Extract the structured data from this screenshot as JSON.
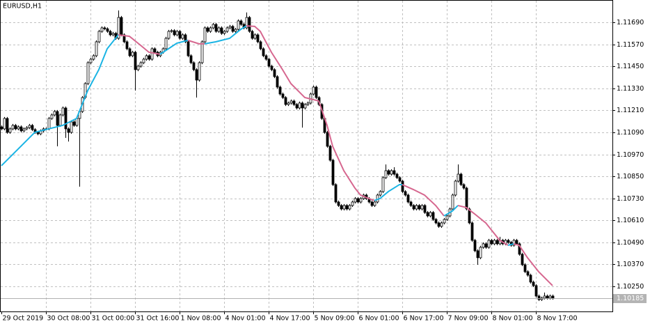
{
  "chart_data": {
    "type": "candlestick",
    "title": "EURUSD,H1",
    "categories": [
      "29 Oct 2019",
      null,
      null,
      null,
      null,
      null,
      null,
      null,
      null,
      null,
      null,
      null,
      null,
      null,
      null,
      null,
      "30 Oct 08:00",
      null,
      null,
      null,
      null,
      null,
      null,
      null,
      null,
      null,
      null,
      null,
      null,
      null,
      null,
      null,
      "31 Oct 00:00",
      null,
      null,
      null,
      null,
      null,
      null,
      null,
      null,
      null,
      null,
      null,
      null,
      null,
      null,
      null,
      "31 Oct 16:00",
      null,
      null,
      null,
      null,
      null,
      null,
      null,
      null,
      null,
      null,
      null,
      null,
      null,
      null,
      null,
      "1 Nov 08:00",
      null,
      null,
      null,
      null,
      null,
      null,
      null,
      null,
      null,
      null,
      null,
      null,
      null,
      null,
      null,
      "4 Nov 01:00",
      null,
      null,
      null,
      null,
      null,
      null,
      null,
      null,
      null,
      null,
      null,
      null,
      null,
      null,
      null,
      "4 Nov 17:00",
      null,
      null,
      null,
      null,
      null,
      null,
      null,
      null,
      null,
      null,
      null,
      null,
      null,
      null,
      null,
      "5 Nov 09:00",
      null,
      null,
      null,
      null,
      null,
      null,
      null,
      null,
      null,
      null,
      null,
      null,
      null,
      null,
      null,
      "6 Nov 01:00",
      null,
      null,
      null,
      null,
      null,
      null,
      null,
      null,
      null,
      null,
      null,
      null,
      null,
      null,
      null,
      "6 Nov 17:00",
      null,
      null,
      null,
      null,
      null,
      null,
      null,
      null,
      null,
      null,
      null,
      null,
      null,
      null,
      null,
      "7 Nov 09:00",
      null,
      null,
      null,
      null,
      null,
      null,
      null,
      null,
      null,
      null,
      null,
      null,
      null,
      null,
      null,
      "8 Nov 01:00",
      null,
      null,
      null,
      null,
      null,
      null,
      null,
      null,
      null,
      null,
      null,
      null,
      null,
      null,
      null,
      "8 Nov 17:00",
      null,
      null,
      null,
      null,
      null,
      null
    ],
    "open": [
      1.1112,
      1.11109,
      1.11166,
      1.1109,
      1.11109,
      1.11128,
      1.11109,
      1.1112,
      1.11098,
      1.11109,
      1.11116,
      1.11128,
      1.11105,
      1.1109,
      1.11082,
      1.11098,
      1.11109,
      1.11109,
      1.11166,
      1.11185,
      1.11204,
      1.11128,
      1.11185,
      1.11223,
      1.11109,
      1.1109,
      1.11147,
      1.11128,
      1.11166,
      1.11204,
      1.1128,
      1.11356,
      1.1147,
      1.11489,
      1.11508,
      1.11584,
      1.11641,
      1.1166,
      1.11655,
      1.11641,
      1.11622,
      1.1163,
      1.11603,
      1.11717,
      1.11622,
      1.11584,
      1.11546,
      1.11508,
      1.11527,
      1.11432,
      1.11451,
      1.1147,
      1.11489,
      1.11508,
      1.11489,
      1.11546,
      1.11527,
      1.11508,
      1.11527,
      1.11546,
      1.11603,
      1.11641,
      1.11645,
      1.11622,
      1.11641,
      1.11603,
      1.11622,
      1.11584,
      1.11508,
      1.1147,
      1.11432,
      1.11375,
      1.1147,
      1.11584,
      1.1166,
      1.11641,
      1.1166,
      1.11679,
      1.11641,
      1.1166,
      1.1163,
      1.11641,
      1.1166,
      1.11668,
      1.11641,
      1.11652,
      1.11698,
      1.11679,
      1.1166,
      1.11717,
      1.11641,
      1.11603,
      1.11622,
      1.11584,
      1.11546,
      1.11508,
      1.11489,
      1.11451,
      1.11432,
      1.11394,
      1.11337,
      1.11299,
      1.1128,
      1.11242,
      1.1125,
      1.11261,
      1.11242,
      1.11223,
      1.1125,
      1.11223,
      1.11242,
      1.1125,
      1.11299,
      1.11337,
      1.1128,
      1.11242,
      1.11166,
      1.1109,
      1.11014,
      1.10938,
      1.10805,
      1.1071,
      1.10691,
      1.10672,
      1.10691,
      1.10672,
      1.10691,
      1.1071,
      1.10729,
      1.1071,
      1.10729,
      1.10748,
      1.10729,
      1.1071,
      1.10691,
      1.1071,
      1.10748,
      1.10767,
      1.10843,
      1.10881,
      1.10862,
      1.10881,
      1.10862,
      1.10843,
      1.10824,
      1.10767,
      1.10748,
      1.1071,
      1.10691,
      1.10672,
      1.10691,
      1.10672,
      1.10691,
      1.10653,
      1.10634,
      1.10653,
      1.10615,
      1.10596,
      1.10577,
      1.10596,
      1.10615,
      1.10634,
      1.10672,
      1.10748,
      1.10824,
      1.10862,
      1.10805,
      1.10786,
      1.10672,
      1.10596,
      1.10501,
      1.10444,
      1.10406,
      1.10463,
      1.10482,
      1.10463,
      1.10501,
      1.10482,
      1.10501,
      1.10482,
      1.10501,
      1.10482,
      1.10501,
      1.1049,
      1.10474,
      1.10501,
      1.10482,
      1.10425,
      1.10368,
      1.1033,
      1.10311,
      1.10273,
      1.10254,
      1.10197,
      1.10178,
      1.10186,
      1.10197,
      1.10186,
      1.10197
    ],
    "high": [
      1.11128,
      1.11174,
      1.11174,
      1.11117,
      1.11136,
      1.11136,
      1.11128,
      1.11128,
      1.11117,
      1.11124,
      1.11136,
      1.11136,
      1.11113,
      1.11098,
      1.11106,
      1.11117,
      1.11117,
      1.11174,
      1.11193,
      1.11212,
      1.11212,
      1.11193,
      1.11231,
      1.11231,
      1.11117,
      1.11155,
      1.11155,
      1.11174,
      1.11212,
      1.11288,
      1.11364,
      1.11478,
      1.11497,
      1.11516,
      1.11592,
      1.11649,
      1.11668,
      1.11668,
      1.11663,
      1.11649,
      1.11638,
      1.11638,
      1.11755,
      1.11725,
      1.1163,
      1.11592,
      1.11554,
      1.11535,
      1.11535,
      1.11459,
      1.11478,
      1.11497,
      1.11516,
      1.11516,
      1.11554,
      1.11554,
      1.11535,
      1.11535,
      1.11554,
      1.11611,
      1.11649,
      1.11653,
      1.11653,
      1.11649,
      1.11649,
      1.1163,
      1.1163,
      1.11592,
      1.11516,
      1.11478,
      1.1144,
      1.11478,
      1.11592,
      1.11668,
      1.11668,
      1.11668,
      1.11687,
      1.11687,
      1.11668,
      1.11668,
      1.11649,
      1.11668,
      1.11676,
      1.11676,
      1.1166,
      1.11706,
      1.11706,
      1.11687,
      1.11744,
      1.11725,
      1.11649,
      1.1163,
      1.1163,
      1.11592,
      1.11554,
      1.11516,
      1.11497,
      1.11459,
      1.1144,
      1.11402,
      1.11345,
      1.11307,
      1.11288,
      1.11258,
      1.11269,
      1.11269,
      1.1125,
      1.11258,
      1.11258,
      1.1125,
      1.11258,
      1.11307,
      1.11345,
      1.11345,
      1.11288,
      1.1125,
      1.11174,
      1.11098,
      1.11022,
      1.10946,
      1.10813,
      1.10718,
      1.10699,
      1.10699,
      1.10699,
      1.10699,
      1.10718,
      1.10737,
      1.10737,
      1.10737,
      1.10756,
      1.10756,
      1.10737,
      1.10718,
      1.10718,
      1.10756,
      1.10775,
      1.10851,
      1.10915,
      1.10889,
      1.10889,
      1.109,
      1.1087,
      1.10851,
      1.10832,
      1.10775,
      1.10756,
      1.10718,
      1.10699,
      1.10699,
      1.10699,
      1.10699,
      1.10699,
      1.10661,
      1.10661,
      1.10661,
      1.10623,
      1.10604,
      1.10604,
      1.10623,
      1.10642,
      1.1068,
      1.10756,
      1.10832,
      1.10915,
      1.1087,
      1.10813,
      1.10794,
      1.1068,
      1.10604,
      1.10509,
      1.10452,
      1.10471,
      1.1049,
      1.1049,
      1.10509,
      1.10509,
      1.10509,
      1.10509,
      1.1052,
      1.10509,
      1.10509,
      1.10509,
      1.10498,
      1.10509,
      1.10509,
      1.1049,
      1.10433,
      1.10376,
      1.10338,
      1.10319,
      1.10281,
      1.10262,
      1.10205,
      1.10194,
      1.10216,
      1.10205,
      1.10205,
      1.10205
    ],
    "low": [
      1.11101,
      1.11101,
      1.11082,
      1.11082,
      1.11101,
      1.11101,
      1.11101,
      1.1109,
      1.1109,
      1.11101,
      1.11108,
      1.11097,
      1.11082,
      1.11074,
      1.11074,
      1.1109,
      1.11101,
      1.11101,
      1.11158,
      1.11177,
      1.11014,
      1.1112,
      1.11177,
      1.1106,
      1.1104,
      1.11082,
      1.1112,
      1.1112,
      1.10794,
      1.11196,
      1.11272,
      1.11348,
      1.11462,
      1.11481,
      1.115,
      1.11576,
      1.11633,
      1.11647,
      1.11633,
      1.11614,
      1.11614,
      1.11595,
      1.11595,
      1.11614,
      1.11576,
      1.11538,
      1.115,
      1.115,
      1.11318,
      1.11424,
      1.11443,
      1.11462,
      1.11481,
      1.11481,
      1.11481,
      1.11519,
      1.115,
      1.115,
      1.11519,
      1.11538,
      1.11595,
      1.11633,
      1.11614,
      1.11614,
      1.11595,
      1.11595,
      1.11576,
      1.115,
      1.11462,
      1.11424,
      1.1128,
      1.11367,
      1.11462,
      1.11576,
      1.11633,
      1.11633,
      1.11652,
      1.11633,
      1.11633,
      1.11622,
      1.11622,
      1.11633,
      1.11652,
      1.11633,
      1.11633,
      1.11644,
      1.11671,
      1.11652,
      1.11652,
      1.11633,
      1.11595,
      1.11595,
      1.11576,
      1.11538,
      1.115,
      1.11481,
      1.11443,
      1.11424,
      1.11386,
      1.11329,
      1.11291,
      1.11272,
      1.11234,
      1.11234,
      1.11242,
      1.11234,
      1.11215,
      1.11215,
      1.11116,
      1.11215,
      1.11234,
      1.11242,
      1.11291,
      1.11272,
      1.11234,
      1.11158,
      1.11082,
      1.11006,
      1.1093,
      1.10797,
      1.10702,
      1.10683,
      1.10664,
      1.10664,
      1.10664,
      1.10664,
      1.10683,
      1.10702,
      1.10702,
      1.10702,
      1.10721,
      1.10721,
      1.10702,
      1.10683,
      1.10683,
      1.10702,
      1.1074,
      1.10759,
      1.10835,
      1.10854,
      1.10854,
      1.10854,
      1.10835,
      1.10816,
      1.10759,
      1.1074,
      1.10702,
      1.10683,
      1.10664,
      1.10664,
      1.10664,
      1.10664,
      1.10645,
      1.10626,
      1.10626,
      1.10607,
      1.10588,
      1.10569,
      1.10569,
      1.10588,
      1.10607,
      1.10626,
      1.10664,
      1.1074,
      1.10816,
      1.10797,
      1.10778,
      1.10664,
      1.10588,
      1.10493,
      1.10436,
      1.10368,
      1.10398,
      1.10455,
      1.10455,
      1.10455,
      1.10474,
      1.10474,
      1.10474,
      1.10474,
      1.10474,
      1.10474,
      1.10482,
      1.10466,
      1.10466,
      1.10474,
      1.10417,
      1.1036,
      1.10322,
      1.10303,
      1.10265,
      1.10246,
      1.10189,
      1.1017,
      1.1017,
      1.10178,
      1.10178,
      1.10178,
      1.10177
    ],
    "close": [
      1.11109,
      1.11166,
      1.1109,
      1.11109,
      1.11128,
      1.11109,
      1.1112,
      1.11098,
      1.11109,
      1.11116,
      1.11128,
      1.11105,
      1.1109,
      1.11082,
      1.11098,
      1.11109,
      1.11109,
      1.11166,
      1.11185,
      1.11204,
      1.11128,
      1.11185,
      1.11223,
      1.11109,
      1.1109,
      1.11147,
      1.11128,
      1.11166,
      1.11204,
      1.1128,
      1.11356,
      1.1147,
      1.11489,
      1.11508,
      1.11584,
      1.11641,
      1.1166,
      1.11655,
      1.11641,
      1.11622,
      1.1163,
      1.11603,
      1.11717,
      1.11622,
      1.11584,
      1.11546,
      1.11508,
      1.11527,
      1.11432,
      1.11451,
      1.1147,
      1.11489,
      1.11508,
      1.11489,
      1.11546,
      1.11527,
      1.11508,
      1.11527,
      1.11546,
      1.11603,
      1.11641,
      1.11645,
      1.11622,
      1.11641,
      1.11603,
      1.11622,
      1.11584,
      1.11508,
      1.1147,
      1.11432,
      1.11375,
      1.1147,
      1.11584,
      1.1166,
      1.11641,
      1.1166,
      1.11679,
      1.11641,
      1.1166,
      1.1163,
      1.11641,
      1.1166,
      1.11668,
      1.11641,
      1.11652,
      1.11698,
      1.11679,
      1.1166,
      1.11717,
      1.11641,
      1.11603,
      1.11622,
      1.11584,
      1.11546,
      1.11508,
      1.11489,
      1.11451,
      1.11432,
      1.11394,
      1.11337,
      1.11299,
      1.1128,
      1.11242,
      1.1125,
      1.11261,
      1.11242,
      1.11223,
      1.1125,
      1.11223,
      1.11242,
      1.1125,
      1.11299,
      1.11337,
      1.1128,
      1.11242,
      1.11166,
      1.1109,
      1.11014,
      1.10938,
      1.10805,
      1.1071,
      1.10691,
      1.10672,
      1.10691,
      1.10672,
      1.10691,
      1.1071,
      1.10729,
      1.1071,
      1.10729,
      1.10748,
      1.10729,
      1.1071,
      1.10691,
      1.1071,
      1.10748,
      1.10767,
      1.10843,
      1.10881,
      1.10862,
      1.10881,
      1.10862,
      1.10843,
      1.10824,
      1.10767,
      1.10748,
      1.1071,
      1.10691,
      1.10672,
      1.10691,
      1.10672,
      1.10691,
      1.10653,
      1.10634,
      1.10653,
      1.10615,
      1.10596,
      1.10577,
      1.10596,
      1.10615,
      1.10634,
      1.10672,
      1.10748,
      1.10824,
      1.10862,
      1.10805,
      1.10786,
      1.10672,
      1.10596,
      1.10501,
      1.10444,
      1.10406,
      1.10463,
      1.10482,
      1.10463,
      1.10501,
      1.10482,
      1.10501,
      1.10482,
      1.10501,
      1.10482,
      1.10501,
      1.1049,
      1.10474,
      1.10501,
      1.10482,
      1.10425,
      1.10368,
      1.1033,
      1.10311,
      1.10273,
      1.10254,
      1.10197,
      1.10178,
      1.10186,
      1.10197,
      1.10186,
      1.10197,
      1.10185
    ],
    "bull_color": "#ffffff",
    "bear_color": "#000000",
    "candle_outline": "#000000",
    "ma": {
      "x": [
        0,
        7,
        12,
        17,
        22,
        27,
        31,
        35,
        38,
        41,
        42,
        46,
        50,
        53,
        57,
        60,
        63,
        67,
        71,
        73,
        77,
        82,
        86,
        88,
        91,
        93,
        97,
        101,
        104,
        109,
        112,
        114,
        117,
        119,
        123,
        127,
        129,
        132,
        134,
        136,
        139,
        143,
        144,
        148,
        152,
        156,
        159,
        162,
        164,
        167,
        170,
        174,
        177,
        179,
        182,
        184,
        186,
        189,
        193,
        198
      ],
      "values": [
        1.10908,
        1.11014,
        1.1109,
        1.11109,
        1.11128,
        1.11166,
        1.11318,
        1.11432,
        1.11546,
        1.11603,
        1.11622,
        1.11614,
        1.11565,
        1.11527,
        1.11516,
        1.11546,
        1.11576,
        1.11592,
        1.11573,
        1.11573,
        1.11584,
        1.11603,
        1.11652,
        1.11671,
        1.11668,
        1.11641,
        1.11527,
        1.11432,
        1.11356,
        1.1128,
        1.11269,
        1.11261,
        1.11128,
        1.11014,
        1.10881,
        1.10786,
        1.10748,
        1.10729,
        1.10718,
        1.10729,
        1.10767,
        1.10805,
        1.10805,
        1.10778,
        1.10748,
        1.10691,
        1.10634,
        1.10661,
        1.10691,
        1.1068,
        1.10645,
        1.10596,
        1.10539,
        1.10501,
        1.10474,
        1.10482,
        1.10474,
        1.10406,
        1.1033,
        1.10254
      ],
      "up_color": "#1ab4e4",
      "down_color": "#d6678f"
    },
    "last_price": 1.10185,
    "ylim": [
      1.10113,
      1.11812
    ],
    "yticks": [
      {
        "value": 1.1169,
        "label": "1.11690"
      },
      {
        "value": 1.1157,
        "label": "1.11570"
      },
      {
        "value": 1.1145,
        "label": "1.11450"
      },
      {
        "value": 1.1133,
        "label": "1.11330"
      },
      {
        "value": 1.1121,
        "label": "1.11210"
      },
      {
        "value": 1.1109,
        "label": "1.11090"
      },
      {
        "value": 1.1097,
        "label": "1.10970"
      },
      {
        "value": 1.1085,
        "label": "1.10850"
      },
      {
        "value": 1.1073,
        "label": "1.10730"
      },
      {
        "value": 1.1061,
        "label": "1.10610"
      },
      {
        "value": 1.1049,
        "label": "1.10490"
      },
      {
        "value": 1.1037,
        "label": "1.10370"
      },
      {
        "value": 1.1025,
        "label": "1.10250"
      }
    ],
    "grid": true
  }
}
